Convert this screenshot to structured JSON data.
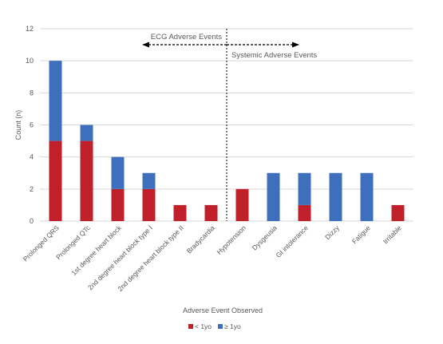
{
  "chart_data": {
    "type": "bar",
    "stacked": true,
    "categories": [
      "Prolonged QRS",
      "Prolonged QTc",
      "1st degree heart block",
      "2nd degree heart block type I",
      "2nd degree heart block type II",
      "Bradycardia",
      "Hypotension",
      "Dysgeusia",
      "GI intolerance",
      "Dizzy",
      "Fatigue",
      "Irritable"
    ],
    "series": [
      {
        "name": "< 1yo",
        "color": "#c0202a",
        "values": [
          5,
          5,
          2,
          2,
          1,
          1,
          2,
          0,
          1,
          0,
          0,
          1
        ]
      },
      {
        "name": "≥ 1yo",
        "color": "#3d6fbd",
        "values": [
          5,
          1,
          2,
          1,
          0,
          0,
          0,
          3,
          2,
          3,
          3,
          0
        ]
      }
    ],
    "xlabel": "Adverse Event Observed",
    "ylabel": "Count (n)",
    "ylim": [
      0,
      12
    ],
    "yticks": [
      0,
      2,
      4,
      6,
      8,
      10,
      12
    ],
    "grid": true,
    "legend_position": "bottom",
    "annotations": {
      "ecg_label": "ECG Adverse Events",
      "systemic_label": "Systemic Adverse Events",
      "divider_after_category": "Bradycardia"
    }
  }
}
